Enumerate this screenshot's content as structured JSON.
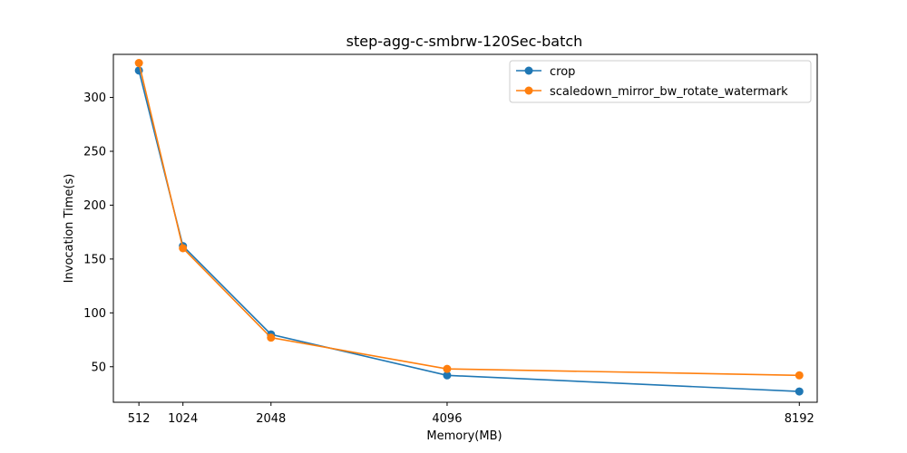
{
  "chart_data": {
    "type": "line",
    "title": "step-agg-c-smbrw-120Sec-batch",
    "xlabel": "Memory(MB)",
    "ylabel": "Invocation Time(s)",
    "x": [
      512,
      1024,
      2048,
      4096,
      8192
    ],
    "x_tick_labels": [
      "512",
      "1024",
      "2048",
      "4096",
      "8192"
    ],
    "xlim": [
      215,
      8400
    ],
    "ylim": [
      17,
      340
    ],
    "y_ticks": [
      50,
      100,
      150,
      200,
      250,
      300
    ],
    "y_tick_labels": [
      "50",
      "100",
      "150",
      "200",
      "250",
      "300"
    ],
    "grid": false,
    "legend_position": "top-right",
    "series": [
      {
        "name": "crop",
        "color": "#1f77b4",
        "values": [
          325,
          162,
          80,
          42,
          27
        ]
      },
      {
        "name": "scaledown_mirror_bw_rotate_watermark",
        "color": "#ff7f0e",
        "values": [
          332,
          160,
          77,
          48,
          42
        ]
      }
    ]
  }
}
